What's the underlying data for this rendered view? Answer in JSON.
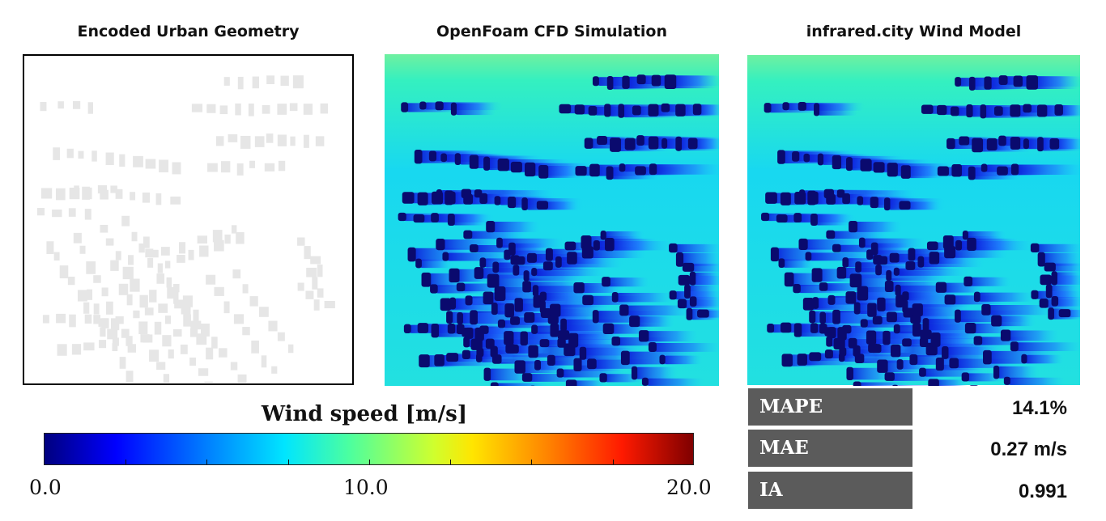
{
  "panels": {
    "geometry_title": "Encoded Urban Geometry",
    "cfd_title": "OpenFoam CFD Simulation",
    "model_title": "infrared.city Wind Model"
  },
  "colorbar": {
    "title": "Wind speed [m/s]",
    "min_label": "0.0",
    "mid_label": "10.0",
    "max_label": "20.0",
    "range": [
      0,
      20
    ],
    "stops": [
      "#00007f",
      "#0000ff",
      "#007fff",
      "#00e5ff",
      "#4cff9f",
      "#cfff2e",
      "#ffe500",
      "#ff8000",
      "#ff1a00",
      "#7f0000"
    ]
  },
  "metrics": [
    {
      "name": "MAPE",
      "value": "14.1%"
    },
    {
      "name": "MAE",
      "value": "0.27 m/s"
    },
    {
      "name": "IA",
      "value": "0.991"
    }
  ],
  "colors": {
    "background_flow": "#34f0c0",
    "wake": "#1040ff",
    "building_core": "#0a0a6e",
    "building_footprint": "#e6e6e6",
    "metric_box": "#5b5b5b"
  }
}
